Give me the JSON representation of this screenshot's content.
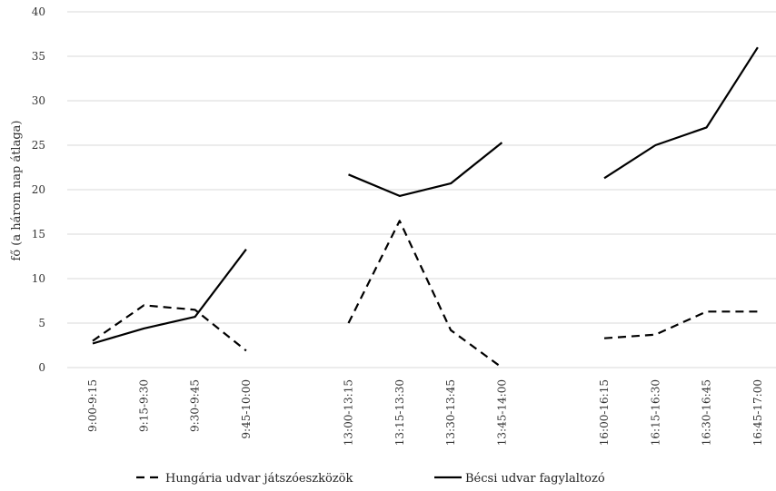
{
  "chart_data": {
    "type": "line",
    "ylabel": "fő (a három nap átlaga)",
    "xlabel": "",
    "title": "",
    "ylim": [
      0,
      40
    ],
    "yticks": [
      0,
      5,
      10,
      15,
      20,
      25,
      30,
      35,
      40
    ],
    "grid": true,
    "legend_position": "bottom",
    "categories": [
      "9:00-9:15",
      "9:15-9:30",
      "9:30-9:45",
      "9:45-10:00",
      "",
      "13:00-13:15",
      "13:15-13:30",
      "13:30-13:45",
      "13:45-14:00",
      "",
      "16:00-16:15",
      "16:15-16:30",
      "16:30-16:45",
      "16:45-17:00"
    ],
    "series": [
      {
        "name": "Hungária udvar játszóeszközök",
        "style": "dashed",
        "color": "#000000",
        "values": [
          3,
          7,
          6.5,
          1.9,
          null,
          5,
          16.5,
          4.2,
          0,
          null,
          3.3,
          3.7,
          6.3,
          6.3
        ]
      },
      {
        "name": "Bécsi udvar fagylaltozó",
        "style": "solid",
        "color": "#000000",
        "values": [
          2.7,
          4.4,
          5.7,
          13.3,
          null,
          21.7,
          19.3,
          20.7,
          25.3,
          null,
          21.3,
          25,
          27,
          36
        ]
      }
    ]
  }
}
